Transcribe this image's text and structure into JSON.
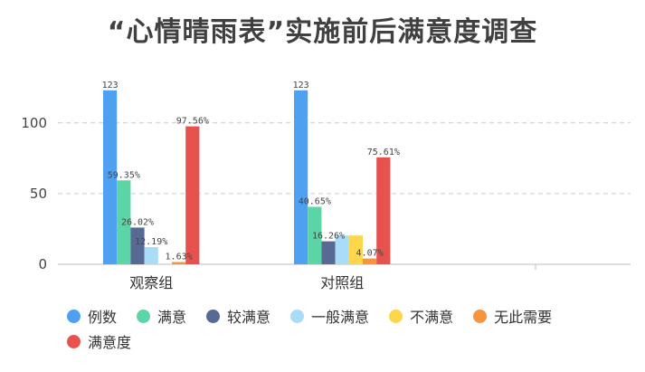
{
  "chart_data": {
    "type": "bar",
    "title": "“心情晴雨表”实施前后满意度调查",
    "categories": [
      "观察组",
      "对照组"
    ],
    "series": [
      {
        "name": "例数",
        "color": "#4EA1F0",
        "values": [
          123,
          123
        ],
        "labels": [
          "123",
          "123"
        ]
      },
      {
        "name": "满意",
        "color": "#5BD5A6",
        "values": [
          59.35,
          40.65
        ],
        "labels": [
          "59.35%",
          "40.65%"
        ]
      },
      {
        "name": "较满意",
        "color": "#566A94",
        "values": [
          26.02,
          16.26
        ],
        "labels": [
          "26.02%",
          "16.26%"
        ]
      },
      {
        "name": "一般满意",
        "color": "#A9DCF7",
        "values": [
          12.19,
          20.33
        ],
        "labels": [
          "12.19%",
          ""
        ]
      },
      {
        "name": "不满意",
        "color": "#FDD64B",
        "values": [
          0,
          20.33
        ],
        "labels": [
          "",
          ""
        ]
      },
      {
        "name": "无此需要",
        "color": "#F6953E",
        "values": [
          1.63,
          4.07
        ],
        "labels": [
          "1.63%",
          "4.07%"
        ]
      },
      {
        "name": "满意度",
        "color": "#E8524E",
        "values": [
          97.56,
          75.61
        ],
        "labels": [
          "97.56%",
          "75.61%"
        ]
      }
    ],
    "yticks": [
      "0",
      "50",
      "100"
    ],
    "ylim": [
      0,
      130
    ],
    "grid": true,
    "legend_position": "bottom-left"
  }
}
